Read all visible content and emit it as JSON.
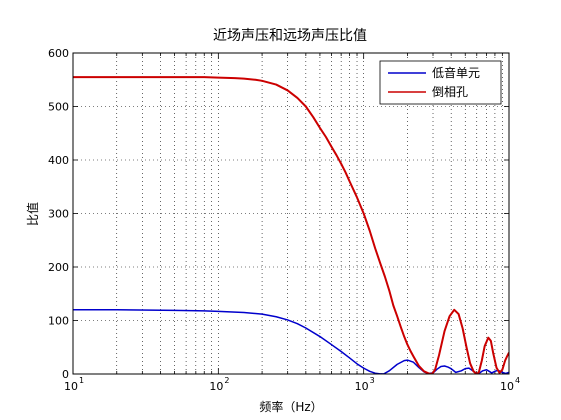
{
  "chart_data": {
    "type": "line",
    "title": "近场声压和远场声压比值",
    "xlabel": "频率（Hz）",
    "ylabel": "比值",
    "xscale": "log",
    "xlim": [
      10,
      10000
    ],
    "ylim": [
      0,
      600
    ],
    "x_ticks": [
      {
        "value": 10,
        "base": "10",
        "exp": "1"
      },
      {
        "value": 100,
        "base": "10",
        "exp": "2"
      },
      {
        "value": 1000,
        "base": "10",
        "exp": "3"
      },
      {
        "value": 10000,
        "base": "10",
        "exp": "4"
      }
    ],
    "y_ticks": [
      "0",
      "100",
      "200",
      "300",
      "400",
      "500",
      "600"
    ],
    "grid": true,
    "legend_position": "top-right",
    "series": [
      {
        "name": "低音单元",
        "color": "#0000cc",
        "x": [
          10,
          20,
          50,
          80,
          100,
          150,
          200,
          250,
          300,
          350,
          400,
          500,
          600,
          700,
          800,
          900,
          1000,
          1100,
          1200,
          1300,
          1380,
          1500,
          1700,
          1900,
          2000,
          2200,
          2400,
          2600,
          2800,
          3000,
          3200,
          3400,
          3600,
          3800,
          4000,
          4300,
          4700,
          5000,
          5300,
          5700,
          6000,
          6200,
          6600,
          7000,
          7300,
          7600,
          8000,
          8400,
          9000,
          9500,
          10000
        ],
        "y": [
          120,
          120,
          119,
          118,
          117,
          115,
          112,
          107,
          101,
          94,
          86,
          70,
          55,
          42,
          30,
          19,
          11,
          5,
          1.5,
          0.3,
          0.5,
          6,
          18,
          25,
          26,
          22,
          12,
          4,
          1,
          2,
          9,
          14,
          15,
          13,
          10,
          3,
          6,
          10,
          11,
          5,
          1,
          1,
          6,
          8,
          5,
          2,
          5,
          7,
          3,
          1,
          3
        ]
      },
      {
        "name": "倒相孔",
        "color": "#cc0000",
        "x": [
          10,
          20,
          50,
          80,
          100,
          130,
          150,
          180,
          200,
          250,
          300,
          350,
          400,
          450,
          500,
          550,
          600,
          650,
          700,
          750,
          800,
          900,
          1000,
          1100,
          1200,
          1300,
          1400,
          1500,
          1600,
          1700,
          1800,
          1900,
          2000,
          2100,
          2200,
          2400,
          2600,
          2800,
          2950,
          3100,
          3300,
          3600,
          3900,
          4200,
          4500,
          4800,
          5100,
          5400,
          5700,
          6000,
          6200,
          6500,
          6800,
          7200,
          7500,
          7800,
          8200,
          8600,
          9000,
          9400,
          9700,
          10000
        ],
        "y": [
          555,
          555,
          555,
          555,
          554,
          553,
          552,
          550,
          548,
          541,
          530,
          516,
          500,
          480,
          460,
          443,
          425,
          409,
          393,
          377,
          360,
          330,
          300,
          268,
          235,
          207,
          182,
          156,
          128,
          108,
          88,
          70,
          55,
          43,
          33,
          15,
          5,
          1,
          0,
          8,
          35,
          80,
          108,
          120,
          112,
          85,
          50,
          20,
          5,
          0,
          3,
          25,
          52,
          68,
          62,
          38,
          12,
          2,
          8,
          25,
          33,
          40
        ]
      }
    ]
  }
}
